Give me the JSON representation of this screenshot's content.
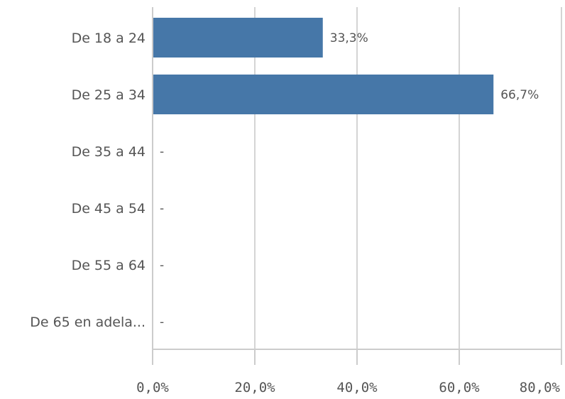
{
  "chart_data": {
    "type": "bar",
    "orientation": "horizontal",
    "categories": [
      "De 18 a 24",
      "De 25 a 34",
      "De 35 a 44",
      "De 45 a 54",
      "De 55 a 64",
      "De 65 en adela..."
    ],
    "values": [
      33.3,
      66.7,
      null,
      null,
      null,
      null
    ],
    "data_labels": [
      "33,3%",
      "66,7%",
      "-",
      "-",
      "-",
      "-"
    ],
    "x_ticks": [
      0,
      20,
      40,
      60,
      80
    ],
    "x_tick_labels": [
      "0,0%",
      "20,0%",
      "40,0%",
      "60,0%",
      "80,0%"
    ],
    "xlim": [
      0,
      80
    ],
    "grid": true,
    "legend": "none",
    "title": "",
    "xlabel": "",
    "ylabel": "",
    "colors": {
      "bar": "#4677a8",
      "grid": "#d4d4d4",
      "text": "#555555"
    }
  }
}
